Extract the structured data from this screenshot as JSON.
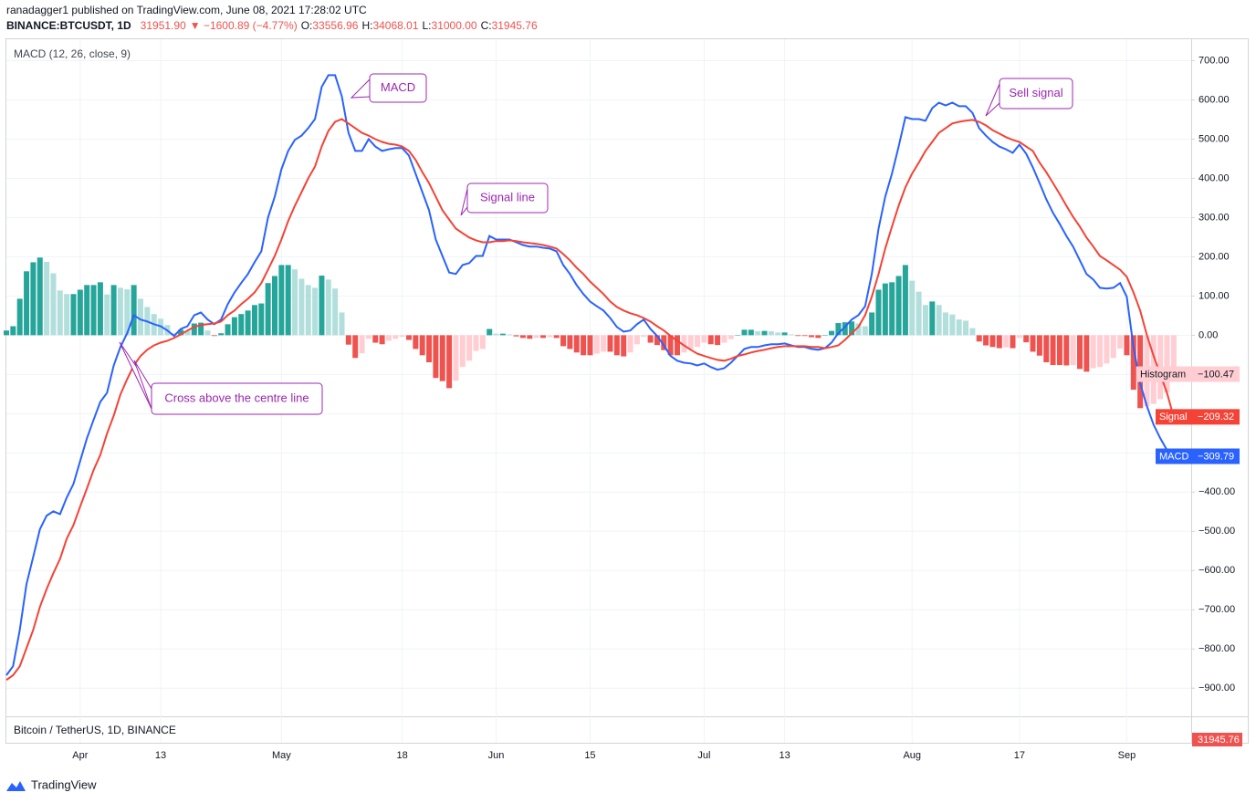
{
  "header": {
    "author_line": "ranadagger1 published on TradingView.com, June 08, 2021 17:28:02 UTC",
    "symbol": "BINANCE:BTCUSDT, 1D",
    "price": "31951.90",
    "change": "▼ −1600.89 (−4.77%)",
    "open_label": "O:",
    "open": "33556.96",
    "high_label": "H:",
    "high": "34068.01",
    "low_label": "L:",
    "low": "31000.00",
    "close_label": "C:",
    "close": "31945.76"
  },
  "lower_pane": {
    "title": "Bitcoin / TetherUS, 1D, BINANCE",
    "price_tag": "31945.76"
  },
  "footer": {
    "brand": "TradingView"
  },
  "chart_data": {
    "type": "macd",
    "title": "MACD (12, 26, close, 9)",
    "grid": true,
    "x": [
      0,
      1,
      2,
      3,
      4,
      5,
      6,
      7,
      8,
      9,
      10,
      11,
      12,
      13,
      14,
      15,
      16,
      17,
      18,
      19,
      20,
      21,
      22,
      23,
      24,
      25,
      26,
      27,
      28,
      29,
      30,
      31,
      32,
      33,
      34,
      35,
      36,
      37,
      38,
      39,
      40,
      41,
      42,
      43,
      44,
      45,
      46,
      47,
      48,
      49,
      50,
      51,
      52,
      53,
      54,
      55,
      56,
      57,
      58,
      59,
      60,
      61,
      62,
      63,
      64,
      65,
      66,
      67,
      68,
      69,
      70,
      71,
      72,
      73,
      74,
      75,
      76,
      77,
      78,
      79,
      80,
      81,
      82,
      83,
      84,
      85,
      86,
      87,
      88,
      89,
      90,
      91,
      92,
      93,
      94,
      95,
      96,
      97,
      98,
      99,
      100,
      101,
      102,
      103,
      104,
      105,
      106,
      107,
      108,
      109,
      110,
      111,
      112,
      113,
      114,
      115,
      116,
      117,
      118,
      119,
      120,
      121,
      122,
      123,
      124,
      125,
      126,
      127,
      128,
      129,
      130,
      131,
      132,
      133,
      134,
      135,
      136,
      137,
      138,
      139,
      140,
      141,
      142,
      143,
      144,
      145,
      146,
      147,
      148,
      149,
      150,
      151,
      152,
      153,
      154,
      155,
      156,
      157,
      158,
      159,
      160,
      161,
      162,
      163,
      164,
      165,
      166,
      167,
      168,
      169,
      170,
      171,
      172,
      173,
      174
    ],
    "xlim": [
      0,
      176.6
    ],
    "xticks": [
      {
        "value": 11,
        "label": "Apr"
      },
      {
        "value": 23,
        "label": "13"
      },
      {
        "value": 41,
        "label": "May"
      },
      {
        "value": 59,
        "label": "18"
      },
      {
        "value": 73,
        "label": "Jun"
      },
      {
        "value": 87,
        "label": "15"
      },
      {
        "value": 104,
        "label": "Jul"
      },
      {
        "value": 116,
        "label": "13"
      },
      {
        "value": 135,
        "label": "Aug"
      },
      {
        "value": 151,
        "label": "17"
      },
      {
        "value": 167,
        "label": "Sep"
      }
    ],
    "ylim": [
      -960,
      750
    ],
    "yticks": [
      {
        "value": 700,
        "label": "700.00"
      },
      {
        "value": 600,
        "label": "600.00"
      },
      {
        "value": 500,
        "label": "500.00"
      },
      {
        "value": 400,
        "label": "400.00"
      },
      {
        "value": 300,
        "label": "300.00"
      },
      {
        "value": 200,
        "label": "200.00"
      },
      {
        "value": 100,
        "label": "100.00"
      },
      {
        "value": 0,
        "label": "0.00"
      },
      {
        "value": -100,
        "label": "−100.00"
      },
      {
        "value": -200,
        "label": "−200.00"
      },
      {
        "value": -300,
        "label": "−300.00"
      },
      {
        "value": -400,
        "label": "−400.00"
      },
      {
        "value": -500,
        "label": "−500.00"
      },
      {
        "value": -600,
        "label": "−600.00"
      },
      {
        "value": -700,
        "label": "−700.00"
      },
      {
        "value": -800,
        "label": "−800.00"
      },
      {
        "value": -900,
        "label": "−900.00"
      }
    ],
    "series": [
      {
        "name": "MACD",
        "type": "line",
        "color": "#2962ff",
        "last_label": "−309.79",
        "values": [
          -867,
          -844,
          -751,
          -635,
          -565,
          -495,
          -460,
          -449,
          -456,
          -414,
          -379,
          -321,
          -263,
          -216,
          -170,
          -147,
          -77,
          -30,
          5,
          51,
          40,
          35,
          28,
          23,
          12,
          -2,
          16,
          23,
          51,
          58,
          40,
          28,
          40,
          79,
          109,
          133,
          156,
          186,
          214,
          300,
          353,
          423,
          470,
          498,
          509,
          528,
          551,
          633,
          663,
          663,
          609,
          516,
          470,
          470,
          500,
          481,
          470,
          474,
          477,
          477,
          458,
          412,
          365,
          319,
          244,
          202,
          160,
          156,
          179,
          184,
          202,
          202,
          253,
          244,
          244,
          244,
          237,
          230,
          226,
          226,
          223,
          221,
          214,
          179,
          156,
          128,
          105,
          86,
          74,
          63,
          44,
          21,
          9,
          12,
          28,
          40,
          16,
          -2,
          -26,
          -53,
          -65,
          -70,
          -72,
          -77,
          -72,
          -81,
          -88,
          -84,
          -70,
          -53,
          -35,
          -30,
          -30,
          -26,
          -23,
          -23,
          -21,
          -26,
          -30,
          -30,
          -35,
          -37,
          -33,
          -19,
          5,
          21,
          40,
          51,
          74,
          156,
          272,
          353,
          412,
          481,
          556,
          551,
          551,
          547,
          579,
          593,
          586,
          593,
          584,
          584,
          567,
          528,
          509,
          493,
          481,
          474,
          465,
          486,
          463,
          428,
          388,
          347,
          312,
          284,
          253,
          226,
          191,
          156,
          142,
          121,
          119,
          121,
          133,
          98,
          -30,
          -123,
          -181,
          -228,
          -263,
          -293,
          -309.79
        ]
      },
      {
        "name": "Signal",
        "type": "line",
        "color": "#f44336",
        "last_label": "−209.32",
        "values": [
          -879,
          -867,
          -844,
          -798,
          -751,
          -693,
          -647,
          -607,
          -570,
          -519,
          -484,
          -437,
          -391,
          -344,
          -305,
          -251,
          -205,
          -151,
          -112,
          -77,
          -53,
          -37,
          -26,
          -19,
          -14,
          -7,
          2,
          12,
          21,
          26,
          28,
          30,
          35,
          51,
          63,
          79,
          93,
          109,
          133,
          167,
          202,
          244,
          291,
          330,
          365,
          400,
          430,
          481,
          521,
          544,
          551,
          540,
          528,
          516,
          509,
          500,
          493,
          488,
          486,
          481,
          470,
          447,
          416,
          388,
          353,
          319,
          295,
          272,
          260,
          249,
          242,
          237,
          237,
          240,
          240,
          242,
          240,
          237,
          235,
          233,
          230,
          226,
          221,
          207,
          191,
          172,
          156,
          137,
          121,
          105,
          86,
          72,
          63,
          56,
          51,
          44,
          35,
          23,
          12,
          -2,
          -14,
          -26,
          -37,
          -47,
          -53,
          -58,
          -63,
          -65,
          -60,
          -53,
          -49,
          -44,
          -40,
          -37,
          -33,
          -30,
          -28,
          -28,
          -28,
          -28,
          -30,
          -30,
          -33,
          -30,
          -26,
          -12,
          5,
          21,
          51,
          98,
          156,
          221,
          277,
          330,
          377,
          412,
          440,
          470,
          493,
          516,
          528,
          540,
          544,
          547,
          549,
          544,
          535,
          523,
          514,
          505,
          498,
          493,
          481,
          470,
          440,
          416,
          388,
          360,
          330,
          302,
          277,
          249,
          226,
          202,
          191,
          179,
          167,
          149,
          109,
          63,
          0,
          -53,
          -100,
          -147,
          -209.32
        ]
      },
      {
        "name": "Histogram",
        "type": "bar",
        "colors": [
          "#26a69a",
          "#b2dfdb",
          "#ef5350",
          "#ffcdd2"
        ],
        "last_label": "−100.47",
        "values": [
          12,
          23,
          93,
          163,
          186,
          198,
          187,
          158,
          114,
          105,
          105,
          116,
          128,
          128,
          135,
          104,
          128,
          121,
          117,
          128,
          93,
          72,
          54,
          42,
          26,
          5,
          14,
          11,
          30,
          32,
          12,
          -2,
          5,
          28,
          46,
          54,
          63,
          77,
          81,
          133,
          151,
          179,
          179,
          168,
          144,
          128,
          121,
          152,
          142,
          119,
          58,
          -24,
          -58,
          -46,
          -9,
          -19,
          -23,
          -14,
          -9,
          -4,
          -12,
          -35,
          -51,
          -69,
          -109,
          -117,
          -135,
          -116,
          -81,
          -65,
          -40,
          -35,
          16,
          4,
          4,
          2,
          -3,
          -7,
          -9,
          -7,
          -7,
          -5,
          -7,
          -28,
          -35,
          -44,
          -51,
          -51,
          -47,
          -42,
          -42,
          -51,
          -54,
          -44,
          -23,
          -4,
          -19,
          -25,
          -38,
          -51,
          -51,
          -44,
          -35,
          -30,
          -19,
          -23,
          -25,
          -19,
          -10,
          0,
          14,
          14,
          10,
          11,
          10,
          7,
          7,
          2,
          -2,
          -2,
          -5,
          -7,
          0,
          11,
          31,
          33,
          35,
          30,
          23,
          58,
          116,
          132,
          135,
          151,
          179,
          139,
          111,
          77,
          86,
          77,
          58,
          53,
          40,
          37,
          18,
          -16,
          -26,
          -30,
          -33,
          -31,
          -33,
          -7,
          -18,
          -42,
          -52,
          -69,
          -76,
          -76,
          -77,
          -76,
          -86,
          -93,
          -84,
          -81,
          -72,
          -58,
          -34,
          -51,
          -139,
          -186,
          -181,
          -175,
          -163,
          -146,
          -100.47
        ]
      }
    ],
    "annotations": [
      {
        "text": "MACD"
      },
      {
        "text": "Signal line"
      },
      {
        "text": "Sell signal"
      },
      {
        "text": "Cross above the centre line"
      }
    ]
  }
}
